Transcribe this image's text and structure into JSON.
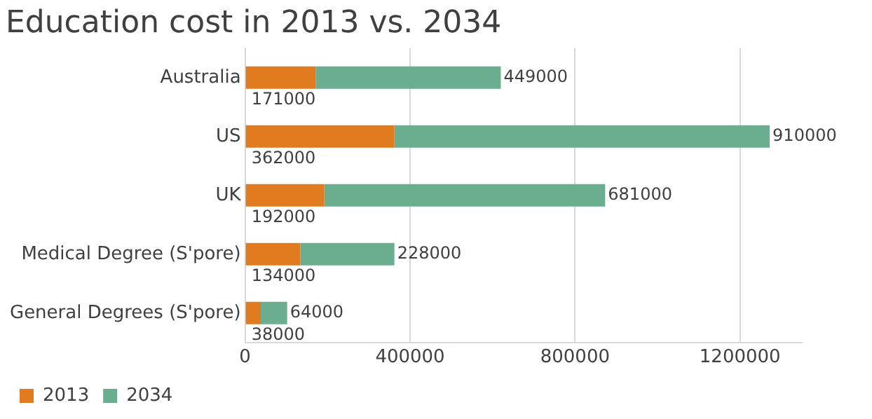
{
  "chart_data": {
    "type": "bar",
    "orientation": "horizontal",
    "stacked": true,
    "title": "Education cost in 2013 vs. 2034",
    "categories": [
      "Australia",
      "US",
      "UK",
      "Medical Degree (S'pore)",
      "General Degrees (S'pore)"
    ],
    "series": [
      {
        "name": "2013",
        "color": "#e07b1f",
        "values": [
          171000,
          362000,
          192000,
          134000,
          38000
        ]
      },
      {
        "name": "2034",
        "color": "#6aae8f",
        "values": [
          449000,
          910000,
          681000,
          228000,
          64000
        ]
      }
    ],
    "xlim": [
      0,
      1350000
    ],
    "xticks": [
      0,
      400000,
      800000,
      1200000
    ],
    "grid": "x",
    "legend": "bottom left",
    "data_labels": true
  }
}
